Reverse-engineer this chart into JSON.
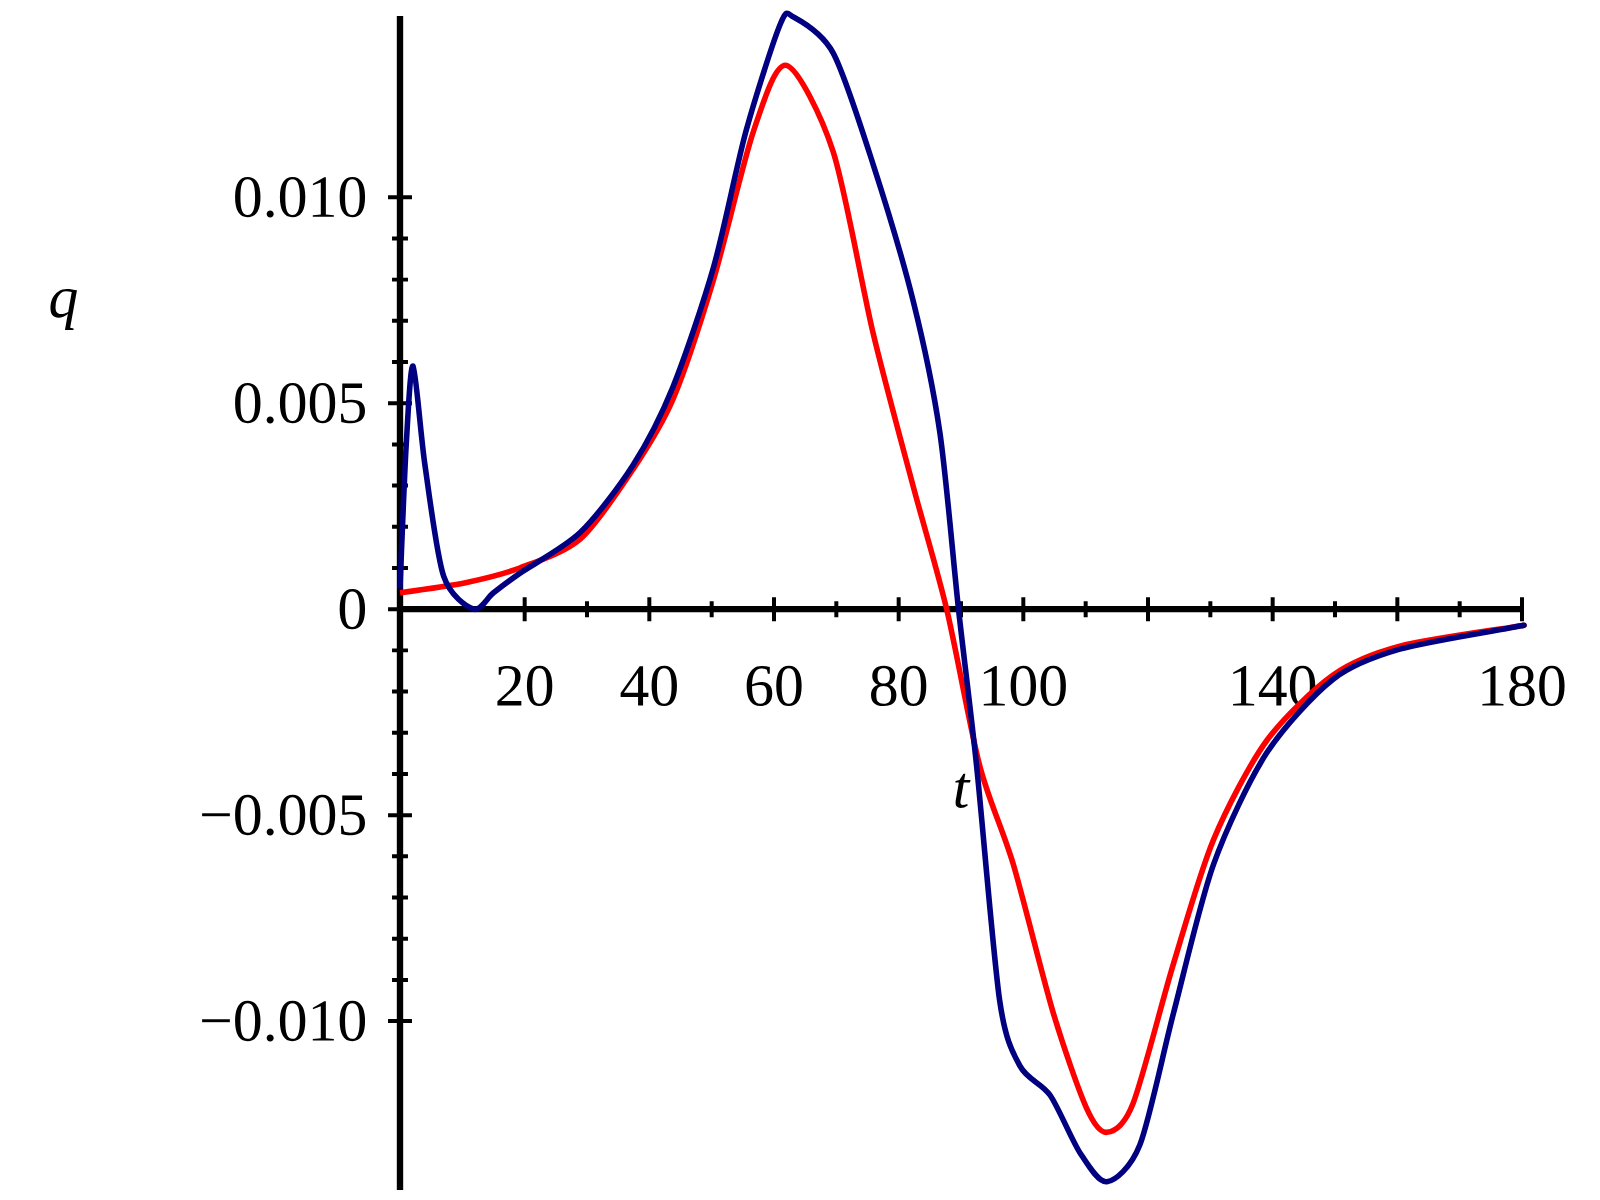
{
  "chart_data": {
    "type": "line",
    "xlabel": "t",
    "ylabel": "q",
    "xlim": [
      0,
      180
    ],
    "ylim": [
      -0.0141,
      0.0144
    ],
    "xticks": [
      20,
      40,
      60,
      80,
      100,
      {
        "value": 120,
        "label": null
      },
      140,
      {
        "value": 160,
        "label": null
      },
      180
    ],
    "yticks": [
      {
        "value": -0.01,
        "label": "−0.010"
      },
      {
        "value": -0.005,
        "label": "−0.005"
      },
      0,
      {
        "value": 0.005,
        "label": "0.005"
      },
      {
        "value": 0.01,
        "label": "0.010"
      }
    ],
    "marker": "none",
    "line_style": "solid",
    "series": [
      {
        "color": "#ff0000",
        "x": [
          0,
          10.7,
          19.2,
          28.9,
          37.4,
          43.8,
          50.3,
          56.7,
          62,
          69.5,
          75.9,
          82.3,
          87.7,
          93,
          98.4,
          104.8,
          110.1,
          113.4,
          117.6,
          124.1,
          130.5,
          139,
          149.7,
          160.4,
          178.6,
          180
        ],
        "values": [
          0.0004,
          0.00065,
          0.001,
          0.0017,
          0.0034,
          0.0051,
          0.008,
          0.0116,
          0.0132,
          0.0111,
          0.0067,
          0.003,
          0,
          -0.0038,
          -0.0062,
          -0.0098,
          -0.0121,
          -0.0127,
          -0.012,
          -0.0086,
          -0.0056,
          -0.0032,
          -0.0016,
          -0.0009,
          -0.00043,
          -0.0004
        ]
      },
      {
        "color": "#000080",
        "x": [
          0,
          1,
          2.1,
          4,
          7,
          11.8,
          15,
          19.2,
          28.9,
          37.4,
          43.8,
          50.3,
          55.5,
          61,
          63.2,
          69.5,
          75.9,
          82.3,
          86.6,
          89.6,
          92.5,
          96.2,
          99.5,
          104.3,
          109.1,
          113.4,
          118.7,
          124.1,
          130.5,
          139,
          149.7,
          160.4,
          178.6,
          180
        ],
        "values": [
          0.0005,
          0.004,
          0.0059,
          0.0035,
          0.0008,
          0.0,
          0.0004,
          0.00087,
          0.00186,
          0.0035,
          0.0054,
          0.0083,
          0.0116,
          0.0142,
          0.01437,
          0.0135,
          0.0108,
          0.0075,
          0.0043,
          0,
          -0.0038,
          -0.0095,
          -0.0111,
          -0.0118,
          -0.0132,
          -0.0139,
          -0.013,
          -0.0098,
          -0.0062,
          -0.0035,
          -0.0017,
          -0.00097,
          -0.00044,
          -0.0004
        ]
      }
    ]
  }
}
